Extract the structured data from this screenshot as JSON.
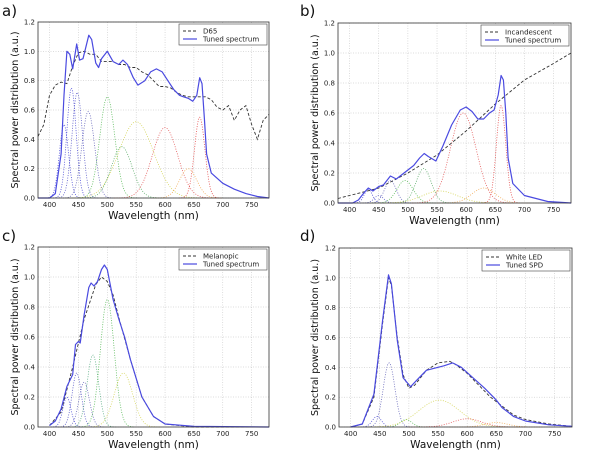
{
  "chart_data": [
    {
      "type": "line",
      "panel_label": "a)",
      "xlabel": "Wavelength (nm)",
      "ylabel": "Spectral power distribution (a.u.)",
      "xlim": [
        380,
        780
      ],
      "ylim": [
        0,
        1.2
      ],
      "xticks": [
        400,
        450,
        500,
        550,
        600,
        650,
        700,
        750
      ],
      "yticks": [
        "0.0",
        "0.2",
        "0.4",
        "0.6",
        "0.8",
        "1.0",
        "1.2"
      ],
      "grid": true,
      "legend_position": "top-right",
      "reference": {
        "name": "D65",
        "style": "dashed",
        "color": "#333333",
        "points": [
          [
            380,
            0.42
          ],
          [
            390,
            0.5
          ],
          [
            400,
            0.7
          ],
          [
            410,
            0.77
          ],
          [
            420,
            0.79
          ],
          [
            430,
            0.78
          ],
          [
            440,
            0.9
          ],
          [
            450,
            0.99
          ],
          [
            460,
            1.0
          ],
          [
            470,
            0.98
          ],
          [
            480,
            0.98
          ],
          [
            490,
            0.93
          ],
          [
            500,
            0.93
          ],
          [
            510,
            0.93
          ],
          [
            520,
            0.91
          ],
          [
            530,
            0.91
          ],
          [
            540,
            0.89
          ],
          [
            550,
            0.89
          ],
          [
            560,
            0.86
          ],
          [
            570,
            0.84
          ],
          [
            580,
            0.8
          ],
          [
            590,
            0.76
          ],
          [
            600,
            0.76
          ],
          [
            610,
            0.75
          ],
          [
            620,
            0.72
          ],
          [
            630,
            0.7
          ],
          [
            640,
            0.69
          ],
          [
            650,
            0.69
          ],
          [
            660,
            0.69
          ],
          [
            670,
            0.69
          ],
          [
            680,
            0.67
          ],
          [
            690,
            0.62
          ],
          [
            700,
            0.6
          ],
          [
            710,
            0.63
          ],
          [
            720,
            0.53
          ],
          [
            730,
            0.6
          ],
          [
            740,
            0.63
          ],
          [
            750,
            0.5
          ],
          [
            760,
            0.4
          ],
          [
            770,
            0.53
          ],
          [
            780,
            0.57
          ]
        ]
      },
      "tuned": {
        "name": "Tuned spectrum",
        "color": "#4a4ae0",
        "points": [
          [
            380,
            0
          ],
          [
            400,
            0.0
          ],
          [
            410,
            0.03
          ],
          [
            420,
            0.3
          ],
          [
            425,
            0.7
          ],
          [
            430,
            1.0
          ],
          [
            435,
            0.98
          ],
          [
            440,
            0.88
          ],
          [
            447,
            1.05
          ],
          [
            452,
            0.94
          ],
          [
            458,
            0.95
          ],
          [
            468,
            1.11
          ],
          [
            473,
            1.08
          ],
          [
            480,
            0.92
          ],
          [
            485,
            0.89
          ],
          [
            490,
            0.95
          ],
          [
            500,
            1.0
          ],
          [
            510,
            0.93
          ],
          [
            520,
            0.91
          ],
          [
            527,
            0.94
          ],
          [
            535,
            0.91
          ],
          [
            545,
            0.82
          ],
          [
            553,
            0.77
          ],
          [
            565,
            0.8
          ],
          [
            575,
            0.86
          ],
          [
            585,
            0.88
          ],
          [
            595,
            0.86
          ],
          [
            605,
            0.8
          ],
          [
            615,
            0.74
          ],
          [
            625,
            0.7
          ],
          [
            632,
            0.69
          ],
          [
            640,
            0.68
          ],
          [
            648,
            0.66
          ],
          [
            655,
            0.7
          ],
          [
            660,
            0.82
          ],
          [
            664,
            0.78
          ],
          [
            668,
            0.55
          ],
          [
            672,
            0.3
          ],
          [
            680,
            0.17
          ],
          [
            700,
            0.1
          ],
          [
            720,
            0.06
          ],
          [
            740,
            0.03
          ],
          [
            760,
            0.01
          ],
          [
            780,
            0
          ]
        ]
      },
      "components": [
        {
          "center": 425,
          "height": 0.5,
          "width": 8,
          "color": "#2222cc"
        },
        {
          "center": 438,
          "height": 0.75,
          "width": 8,
          "color": "#2222cc"
        },
        {
          "center": 448,
          "height": 0.72,
          "width": 9,
          "color": "#3333bb"
        },
        {
          "center": 467,
          "height": 0.59,
          "width": 11,
          "color": "#4444aa"
        },
        {
          "center": 500,
          "height": 0.69,
          "width": 13,
          "color": "#33aa33"
        },
        {
          "center": 525,
          "height": 0.35,
          "width": 18,
          "color": "#339944"
        },
        {
          "center": 550,
          "height": 0.52,
          "width": 30,
          "color": "#cccc33"
        },
        {
          "center": 600,
          "height": 0.48,
          "width": 22,
          "color": "#dd3333"
        },
        {
          "center": 640,
          "height": 0.2,
          "width": 15,
          "color": "#ee9933"
        },
        {
          "center": 660,
          "height": 0.55,
          "width": 9,
          "color": "#dd2222"
        }
      ]
    },
    {
      "type": "line",
      "panel_label": "b)",
      "xlabel": "Wavelength (nm)",
      "ylabel": "Spectral power distribution (a.u.)",
      "xlim": [
        380,
        780
      ],
      "ylim": [
        0,
        1.2
      ],
      "xticks": [
        400,
        450,
        500,
        550,
        600,
        650,
        700,
        750
      ],
      "yticks": [
        "0.0",
        "0.2",
        "0.4",
        "0.6",
        "0.8",
        "1.0",
        "1.2"
      ],
      "grid": true,
      "legend_position": "top-right",
      "reference": {
        "name": "Incandescent",
        "style": "dashed",
        "color": "#333333",
        "points": [
          [
            380,
            0.03
          ],
          [
            400,
            0.05
          ],
          [
            450,
            0.1
          ],
          [
            500,
            0.2
          ],
          [
            550,
            0.32
          ],
          [
            600,
            0.48
          ],
          [
            650,
            0.66
          ],
          [
            700,
            0.82
          ],
          [
            750,
            0.93
          ],
          [
            780,
            1.0
          ]
        ]
      },
      "tuned": {
        "name": "Tuned spectrum",
        "color": "#4a4ae0",
        "points": [
          [
            380,
            0
          ],
          [
            405,
            0
          ],
          [
            415,
            0.02
          ],
          [
            425,
            0.07
          ],
          [
            432,
            0.1
          ],
          [
            440,
            0.08
          ],
          [
            450,
            0.11
          ],
          [
            458,
            0.12
          ],
          [
            470,
            0.18
          ],
          [
            480,
            0.16
          ],
          [
            490,
            0.19
          ],
          [
            500,
            0.22
          ],
          [
            510,
            0.25
          ],
          [
            520,
            0.3
          ],
          [
            528,
            0.33
          ],
          [
            535,
            0.31
          ],
          [
            548,
            0.28
          ],
          [
            560,
            0.38
          ],
          [
            575,
            0.52
          ],
          [
            590,
            0.62
          ],
          [
            600,
            0.64
          ],
          [
            610,
            0.61
          ],
          [
            620,
            0.56
          ],
          [
            630,
            0.56
          ],
          [
            640,
            0.6
          ],
          [
            648,
            0.62
          ],
          [
            655,
            0.72
          ],
          [
            660,
            0.85
          ],
          [
            664,
            0.82
          ],
          [
            668,
            0.6
          ],
          [
            672,
            0.3
          ],
          [
            680,
            0.13
          ],
          [
            700,
            0.05
          ],
          [
            740,
            0.01
          ],
          [
            780,
            0
          ]
        ]
      },
      "components": [
        {
          "center": 432,
          "height": 0.09,
          "width": 7,
          "color": "#2222cc"
        },
        {
          "center": 450,
          "height": 0.05,
          "width": 8,
          "color": "#3333bb"
        },
        {
          "center": 470,
          "height": 0.15,
          "width": 10,
          "color": "#4444aa"
        },
        {
          "center": 495,
          "height": 0.15,
          "width": 14,
          "color": "#33aa33"
        },
        {
          "center": 527,
          "height": 0.23,
          "width": 13,
          "color": "#339944"
        },
        {
          "center": 555,
          "height": 0.08,
          "width": 30,
          "color": "#cccc33"
        },
        {
          "center": 595,
          "height": 0.6,
          "width": 22,
          "color": "#dd3333"
        },
        {
          "center": 630,
          "height": 0.1,
          "width": 20,
          "color": "#ee9933"
        },
        {
          "center": 660,
          "height": 0.65,
          "width": 8,
          "color": "#dd2222"
        }
      ]
    },
    {
      "type": "line",
      "panel_label": "c)",
      "xlabel": "Wavelength (nm)",
      "ylabel": "Spectral power distribution (a.u.)",
      "xlim": [
        380,
        780
      ],
      "ylim": [
        0,
        1.2
      ],
      "xticks": [
        400,
        450,
        500,
        550,
        600,
        650,
        700,
        750
      ],
      "yticks": [
        "0.0",
        "0.2",
        "0.4",
        "0.6",
        "0.8",
        "1.0",
        "1.2"
      ],
      "grid": true,
      "legend_position": "top-right",
      "reference": {
        "name": "Melanopic",
        "style": "dashed",
        "color": "#333333",
        "points": [
          [
            400,
            0.01
          ],
          [
            420,
            0.1
          ],
          [
            440,
            0.4
          ],
          [
            460,
            0.72
          ],
          [
            480,
            0.95
          ],
          [
            490,
            1.0
          ],
          [
            500,
            0.97
          ],
          [
            510,
            0.88
          ],
          [
            520,
            0.73
          ],
          [
            540,
            0.45
          ],
          [
            560,
            0.2
          ],
          [
            580,
            0.07
          ],
          [
            600,
            0.02
          ],
          [
            650,
            0
          ],
          [
            780,
            0
          ]
        ]
      },
      "tuned": {
        "name": "Tuned spectrum",
        "color": "#4a4ae0",
        "points": [
          [
            400,
            0.01
          ],
          [
            410,
            0.04
          ],
          [
            420,
            0.12
          ],
          [
            430,
            0.27
          ],
          [
            440,
            0.35
          ],
          [
            445,
            0.55
          ],
          [
            450,
            0.57
          ],
          [
            453,
            0.56
          ],
          [
            460,
            0.75
          ],
          [
            468,
            0.93
          ],
          [
            472,
            0.96
          ],
          [
            477,
            0.94
          ],
          [
            483,
            0.97
          ],
          [
            490,
            1.05
          ],
          [
            495,
            1.08
          ],
          [
            500,
            1.05
          ],
          [
            510,
            0.85
          ],
          [
            520,
            0.72
          ],
          [
            530,
            0.6
          ],
          [
            540,
            0.45
          ],
          [
            560,
            0.2
          ],
          [
            580,
            0.07
          ],
          [
            600,
            0.02
          ],
          [
            650,
            0.005
          ],
          [
            780,
            0
          ]
        ]
      },
      "components": [
        {
          "center": 430,
          "height": 0.2,
          "width": 7,
          "color": "#2222cc"
        },
        {
          "center": 447,
          "height": 0.36,
          "width": 8,
          "color": "#3333bb"
        },
        {
          "center": 460,
          "height": 0.3,
          "width": 9,
          "color": "#4444aa"
        },
        {
          "center": 475,
          "height": 0.48,
          "width": 10,
          "color": "#339966"
        },
        {
          "center": 500,
          "height": 0.85,
          "width": 12,
          "color": "#33aa33"
        },
        {
          "center": 528,
          "height": 0.36,
          "width": 16,
          "color": "#cccc33"
        }
      ]
    },
    {
      "type": "line",
      "panel_label": "d)",
      "xlabel": "Wavelength (nm)",
      "ylabel": "Spectral power distribution (a.u.)",
      "xlim": [
        380,
        780
      ],
      "ylim": [
        0,
        1.2
      ],
      "xticks": [
        400,
        450,
        500,
        550,
        600,
        650,
        700,
        750
      ],
      "yticks": [
        "0.0",
        "0.2",
        "0.4",
        "0.6",
        "0.8",
        "1.0",
        "1.2"
      ],
      "grid": true,
      "legend_position": "top-right",
      "reference": {
        "name": "White LED",
        "style": "dashed",
        "color": "#333333",
        "points": [
          [
            400,
            0
          ],
          [
            420,
            0.02
          ],
          [
            440,
            0.2
          ],
          [
            455,
            0.7
          ],
          [
            465,
            1.0
          ],
          [
            470,
            0.95
          ],
          [
            480,
            0.6
          ],
          [
            490,
            0.35
          ],
          [
            500,
            0.26
          ],
          [
            510,
            0.28
          ],
          [
            530,
            0.38
          ],
          [
            550,
            0.43
          ],
          [
            570,
            0.44
          ],
          [
            580,
            0.42
          ],
          [
            600,
            0.36
          ],
          [
            620,
            0.28
          ],
          [
            640,
            0.2
          ],
          [
            660,
            0.14
          ],
          [
            680,
            0.08
          ],
          [
            700,
            0.05
          ],
          [
            740,
            0.02
          ],
          [
            780,
            0.005
          ]
        ]
      },
      "tuned": {
        "name": "Tuned SPD",
        "color": "#4a4ae0",
        "points": [
          [
            400,
            0
          ],
          [
            420,
            0.02
          ],
          [
            440,
            0.22
          ],
          [
            455,
            0.72
          ],
          [
            465,
            1.02
          ],
          [
            470,
            0.96
          ],
          [
            480,
            0.58
          ],
          [
            490,
            0.33
          ],
          [
            503,
            0.27
          ],
          [
            515,
            0.32
          ],
          [
            530,
            0.38
          ],
          [
            540,
            0.39
          ],
          [
            560,
            0.41
          ],
          [
            575,
            0.43
          ],
          [
            590,
            0.4
          ],
          [
            610,
            0.33
          ],
          [
            630,
            0.26
          ],
          [
            650,
            0.18
          ],
          [
            660,
            0.13
          ],
          [
            680,
            0.07
          ],
          [
            700,
            0.04
          ],
          [
            740,
            0.015
          ],
          [
            780,
            0.005
          ]
        ]
      },
      "components": [
        {
          "center": 445,
          "height": 0.07,
          "width": 8,
          "color": "#2222cc"
        },
        {
          "center": 466,
          "height": 0.43,
          "width": 10,
          "color": "#4444aa"
        },
        {
          "center": 495,
          "height": 0.05,
          "width": 10,
          "color": "#33aa33"
        },
        {
          "center": 552,
          "height": 0.18,
          "width": 35,
          "color": "#cccc33"
        },
        {
          "center": 600,
          "height": 0.055,
          "width": 25,
          "color": "#dd3333"
        },
        {
          "center": 650,
          "height": 0.03,
          "width": 20,
          "color": "#ee9933"
        }
      ]
    }
  ]
}
